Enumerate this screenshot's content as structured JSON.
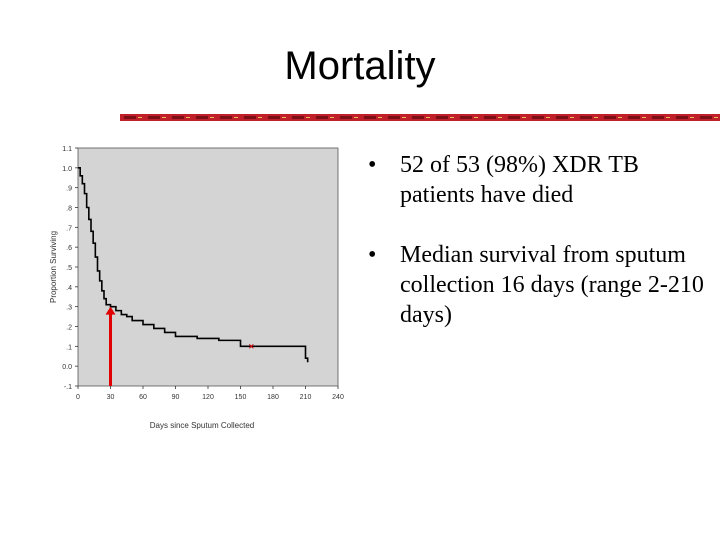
{
  "slide": {
    "title": "Mortality",
    "colors": {
      "bar_red": "#c0202a",
      "bar_dark": "#7a1015",
      "accent_gold": "#e8c060"
    }
  },
  "bullets": [
    {
      "marker": "•",
      "text": "52 of 53 (98%) XDR TB patients have died"
    },
    {
      "marker": "•",
      "text": "Median survival from sputum collection 16 days (range 2-210 days)"
    }
  ],
  "chart_data": {
    "type": "line",
    "title": "",
    "xlabel": "Days since Sputum Collected",
    "ylabel": "Proportion Surviving",
    "xlim": [
      0,
      240
    ],
    "ylim": [
      -0.1,
      1.1
    ],
    "x_ticks": [
      0,
      30,
      60,
      90,
      120,
      150,
      180,
      210,
      240
    ],
    "x_tick_labels": [
      "0",
      "30",
      "60",
      "90",
      "120",
      "150",
      "180",
      "210",
      "240"
    ],
    "y_ticks": [
      -0.1,
      0.0,
      0.1,
      0.2,
      0.3,
      0.4,
      0.5,
      0.6,
      0.7,
      0.8,
      0.9,
      1.0,
      1.1
    ],
    "y_tick_labels": [
      "-.1",
      "0.0",
      ".1",
      ".2",
      ".3",
      ".4",
      ".5",
      ".6",
      ".7",
      ".8",
      ".9",
      "1.0",
      "1.1"
    ],
    "grid": false,
    "plot_background": "#d4d4d4",
    "series": [
      {
        "color": "#000000",
        "x": [
          0,
          2,
          4,
          6,
          8,
          10,
          12,
          14,
          16,
          18,
          20,
          22,
          24,
          26,
          30,
          35,
          40,
          45,
          50,
          60,
          70,
          80,
          90,
          110,
          130,
          150,
          160,
          175,
          190,
          200,
          210,
          212
        ],
        "y": [
          1.0,
          0.96,
          0.92,
          0.87,
          0.8,
          0.74,
          0.68,
          0.62,
          0.55,
          0.48,
          0.43,
          0.38,
          0.34,
          0.31,
          0.3,
          0.28,
          0.26,
          0.25,
          0.23,
          0.21,
          0.19,
          0.17,
          0.15,
          0.14,
          0.13,
          0.1,
          0.1,
          0.1,
          0.1,
          0.1,
          0.04,
          0.02
        ]
      }
    ],
    "censor_marks": [
      {
        "x": 160,
        "y": 0.1,
        "color": "#cc0000"
      }
    ],
    "annotations": [
      {
        "type": "arrow",
        "x": 30,
        "y_from": -0.1,
        "y_to": 0.3,
        "color": "#e00000"
      }
    ]
  }
}
